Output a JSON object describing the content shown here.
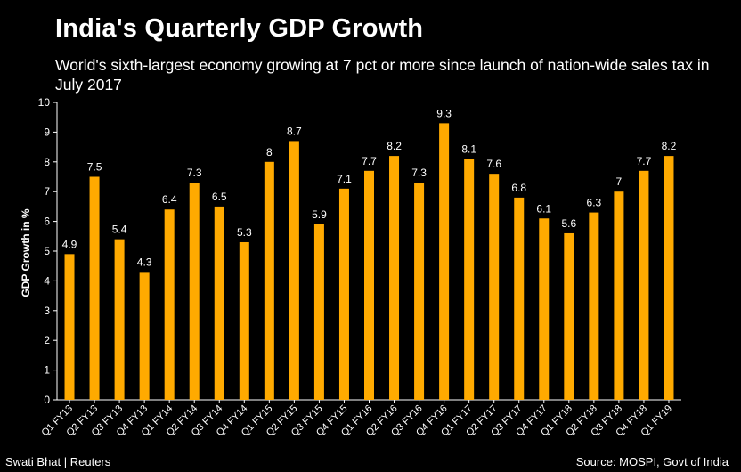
{
  "chart_data": {
    "type": "bar",
    "title": "India's Quarterly GDP Growth",
    "subtitle": "World's sixth-largest economy growing at 7 pct or more since launch of nation-wide sales tax in July 2017",
    "xlabel": "",
    "ylabel": "GDP Growth in %",
    "ylim": [
      0,
      10
    ],
    "yticks": [
      0,
      1,
      2,
      3,
      4,
      5,
      6,
      7,
      8,
      9,
      10
    ],
    "grid": false,
    "categories": [
      "Q1 FY13",
      "Q2 FY13",
      "Q3 FY13",
      "Q4 FY13",
      "Q1 FY14",
      "Q2 FY14",
      "Q3 FY14",
      "Q4 FY14",
      "Q1 FY15",
      "Q2 FY15",
      "Q3 FY15",
      "Q4 FY15",
      "Q1 FY16",
      "Q2 FY16",
      "Q3 FY16",
      "Q4 FY16",
      "Q1 FY17",
      "Q2 FY17",
      "Q3 FY17",
      "Q4 FY17",
      "Q1 FY18",
      "Q2 FY18",
      "Q3 FY18",
      "Q4 FY18",
      "Q1 FY19"
    ],
    "values": [
      4.9,
      7.5,
      5.4,
      4.3,
      6.4,
      7.3,
      6.5,
      5.3,
      8,
      8.7,
      5.9,
      7.1,
      7.7,
      8.2,
      7.3,
      9.3,
      8.1,
      7.6,
      6.8,
      6.1,
      5.6,
      6.3,
      7,
      7.7,
      8.2
    ],
    "labels": [
      "4.9",
      "7.5",
      "5.4",
      "4.3",
      "6.4",
      "7.3",
      "6.5",
      "5.3",
      "8",
      "8.7",
      "5.9",
      "7.1",
      "7.7",
      "8.2",
      "7.3",
      "9.3",
      "8.1",
      "7.6",
      "6.8",
      "6.1",
      "5.6",
      "6.3",
      "7",
      "7.7",
      "8.2"
    ],
    "bar_color": "#FFAA00",
    "background_color": "#000000"
  },
  "footer": {
    "credit": "Swati Bhat | Reuters",
    "source": "Source: MOSPI, Govt of India"
  }
}
